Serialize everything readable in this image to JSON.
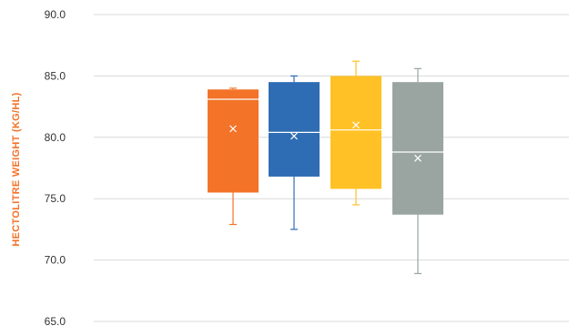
{
  "chart_data": {
    "type": "box",
    "ylabel": "HECTOLITRE WEIGHT (KG/HL)",
    "ylim": [
      65.0,
      90.0
    ],
    "yticks": [
      "65.0",
      "70.0",
      "75.0",
      "80.0",
      "85.0",
      "90.0"
    ],
    "ylabel_color": "#F37329",
    "grid": true,
    "legend": "none",
    "series": [
      {
        "color": "#F37329",
        "min": 72.9,
        "q1": 75.5,
        "median": 83.1,
        "q3": 83.9,
        "max": 84.0,
        "mean": 80.7
      },
      {
        "color": "#2E6DB4",
        "min": 72.5,
        "q1": 76.8,
        "median": 80.4,
        "q3": 84.5,
        "max": 85.0,
        "mean": 80.1
      },
      {
        "color": "#FFC125",
        "min": 74.5,
        "q1": 75.8,
        "median": 80.6,
        "q3": 85.0,
        "max": 86.2,
        "mean": 81.0
      },
      {
        "color": "#9AA5A1",
        "min": 68.9,
        "q1": 73.7,
        "median": 78.8,
        "q3": 84.5,
        "max": 85.6,
        "mean": 78.3
      }
    ]
  }
}
